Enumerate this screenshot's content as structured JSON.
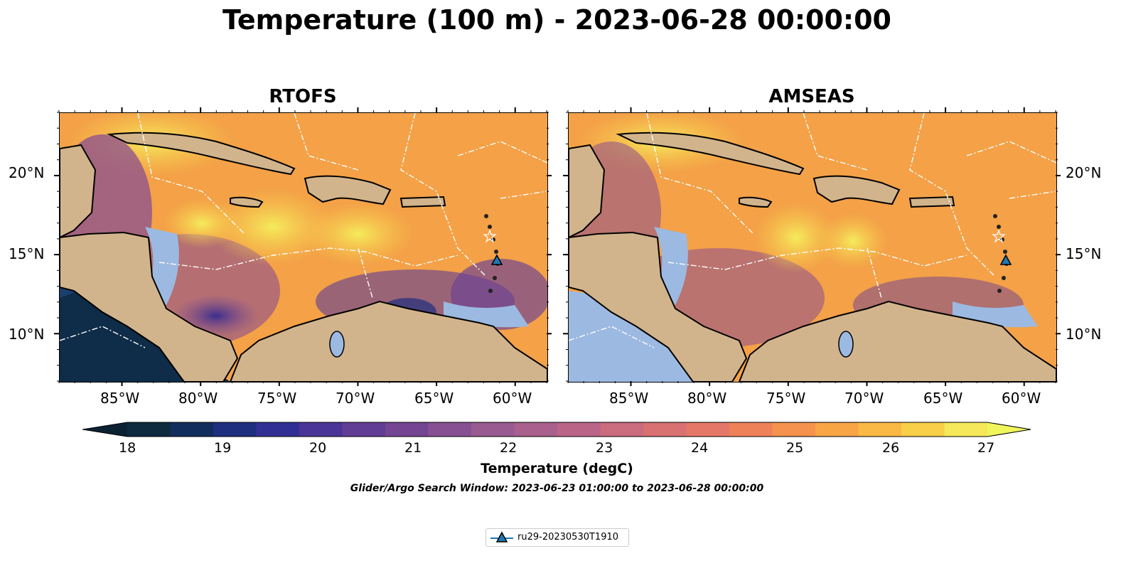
{
  "title": "Temperature (100 m) - 2023-06-28 00:00:00",
  "panels": [
    {
      "title": "RTOFS"
    },
    {
      "title": "AMSEAS"
    }
  ],
  "axes": {
    "x_ticks": [
      "85°W",
      "80°W",
      "75°W",
      "70°W",
      "65°W",
      "60°W"
    ],
    "y_ticks": [
      "20°N",
      "15°N",
      "10°N"
    ],
    "lon_range": [
      -89,
      -58
    ],
    "lat_range": [
      7,
      24
    ]
  },
  "colorbar": {
    "ticks": [
      "18",
      "19",
      "20",
      "21",
      "22",
      "23",
      "24",
      "25",
      "26",
      "27"
    ],
    "label": "Temperature (degC)",
    "range": [
      18,
      27
    ],
    "colors": [
      "#0d2a3f",
      "#112d5e",
      "#1f2f7f",
      "#322f94",
      "#4a3597",
      "#613d95",
      "#744592",
      "#875092",
      "#985a90",
      "#a9608d",
      "#ba6587",
      "#ca6b7e",
      "#d97071",
      "#e57768",
      "#ef8159",
      "#f5924d",
      "#f8a546",
      "#f9b944",
      "#f9cf49",
      "#f5e85a"
    ]
  },
  "search_window": "Glider/Argo Search Window: 2023-06-23 01:00:00 to 2023-06-28 00:00:00",
  "legend": {
    "label": "ru29-20230530T1910",
    "marker_color": "#1f77b4"
  },
  "map_colors": {
    "land": "#d2b48c",
    "shelf": "#9cb9e1",
    "warm": "#f9a84a",
    "hot": "#f3e75a",
    "cool": "#7c4892"
  },
  "glider_position": {
    "lon": -61.2,
    "lat": 14.5
  }
}
